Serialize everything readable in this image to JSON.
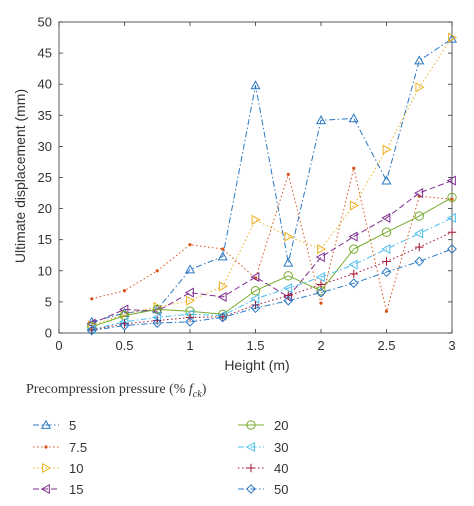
{
  "chart_data": {
    "type": "line",
    "xlabel": "Height (m)",
    "ylabel": "Ultimate displacement (mm)",
    "xlim": [
      0,
      3
    ],
    "ylim": [
      0,
      50
    ],
    "xticks": [
      0,
      0.5,
      1,
      1.5,
      2,
      2.5,
      3
    ],
    "xtick_labels": [
      "0",
      "0.5",
      "1",
      "1.5",
      "2",
      "2.5",
      "3"
    ],
    "yticks": [
      0,
      5,
      10,
      15,
      20,
      25,
      30,
      35,
      40,
      45,
      50
    ],
    "ytick_labels": [
      "0",
      "5",
      "10",
      "15",
      "20",
      "25",
      "30",
      "35",
      "40",
      "45",
      "50"
    ],
    "grid": false,
    "legend_placement": "bottom",
    "legend_title": {
      "prefix": "Precompression pressure (% ",
      "symbol": "f",
      "subscript": "ck",
      "suffix": ")"
    },
    "x": [
      0.25,
      0.5,
      0.75,
      1.0,
      1.25,
      1.5,
      1.75,
      2.0,
      2.25,
      2.5,
      2.75,
      3.0
    ],
    "series": [
      {
        "name": "5",
        "marker": "triangle-up",
        "dash": "dashdot",
        "color": "#2b78c2",
        "values": [
          1.8,
          3.2,
          3.8,
          10.2,
          12.3,
          39.8,
          11.3,
          34.2,
          34.5,
          24.5,
          43.8,
          47.3
        ]
      },
      {
        "name": "7.5",
        "marker": "point",
        "dash": "dot",
        "color": "#d95319",
        "values": [
          5.5,
          6.8,
          10.0,
          14.2,
          13.5,
          8.8,
          25.5,
          4.8,
          26.5,
          3.5,
          22.0,
          21.5
        ]
      },
      {
        "name": "10",
        "marker": "triangle-right",
        "dash": "dot",
        "color": "#edb120",
        "values": [
          1.2,
          3.0,
          4.2,
          5.2,
          7.5,
          18.2,
          15.5,
          13.5,
          20.5,
          29.5,
          39.5,
          47.5
        ]
      },
      {
        "name": "15",
        "marker": "triangle-left",
        "dash": "dash",
        "color": "#7e2f8e",
        "values": [
          1.5,
          3.8,
          3.5,
          6.5,
          5.8,
          9.0,
          5.8,
          12.2,
          15.5,
          18.5,
          22.5,
          24.5
        ]
      },
      {
        "name": "20",
        "marker": "circle",
        "dash": "solid",
        "color": "#77ac30",
        "values": [
          1.0,
          2.8,
          3.8,
          3.5,
          3.0,
          6.8,
          9.2,
          6.8,
          13.5,
          16.2,
          18.8,
          21.8
        ]
      },
      {
        "name": "30",
        "marker": "triangle-left",
        "dash": "dashdot",
        "color": "#4dbeee",
        "values": [
          0.6,
          1.8,
          2.5,
          3.0,
          2.8,
          5.5,
          7.2,
          9.0,
          11.0,
          13.5,
          16.0,
          18.5
        ]
      },
      {
        "name": "40",
        "marker": "plus",
        "dash": "dot",
        "color": "#a2142f",
        "values": [
          0.5,
          1.5,
          2.0,
          2.5,
          2.6,
          4.5,
          6.0,
          7.8,
          9.5,
          11.5,
          13.8,
          16.2
        ]
      },
      {
        "name": "50",
        "marker": "diamond",
        "dash": "dashdot",
        "color": "#2b78c2",
        "values": [
          0.4,
          1.2,
          1.6,
          1.8,
          2.5,
          4.0,
          5.2,
          6.5,
          8.0,
          9.8,
          11.5,
          13.5
        ]
      }
    ]
  }
}
